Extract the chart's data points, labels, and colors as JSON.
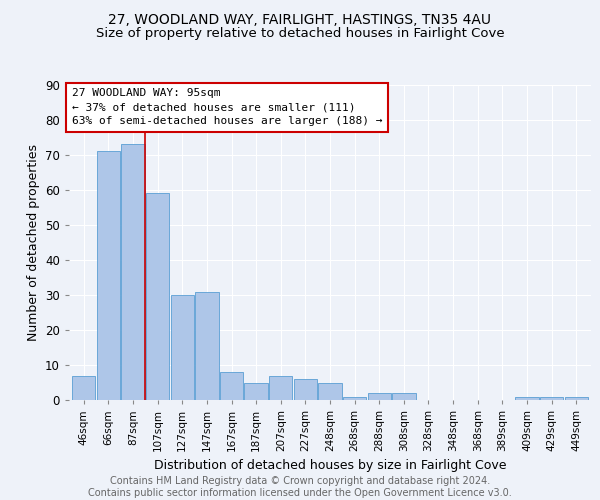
{
  "title_line1": "27, WOODLAND WAY, FAIRLIGHT, HASTINGS, TN35 4AU",
  "title_line2": "Size of property relative to detached houses in Fairlight Cove",
  "xlabel": "Distribution of detached houses by size in Fairlight Cove",
  "ylabel": "Number of detached properties",
  "footer_line1": "Contains HM Land Registry data © Crown copyright and database right 2024.",
  "footer_line2": "Contains public sector information licensed under the Open Government Licence v3.0.",
  "annotation_line1": "27 WOODLAND WAY: 95sqm",
  "annotation_line2": "← 37% of detached houses are smaller (111)",
  "annotation_line3": "63% of semi-detached houses are larger (188) →",
  "bar_labels": [
    "46sqm",
    "66sqm",
    "87sqm",
    "107sqm",
    "127sqm",
    "147sqm",
    "167sqm",
    "187sqm",
    "207sqm",
    "227sqm",
    "248sqm",
    "268sqm",
    "288sqm",
    "308sqm",
    "328sqm",
    "348sqm",
    "368sqm",
    "389sqm",
    "409sqm",
    "429sqm",
    "449sqm"
  ],
  "bar_values": [
    7,
    71,
    73,
    59,
    30,
    31,
    8,
    5,
    7,
    6,
    5,
    1,
    2,
    2,
    0,
    0,
    0,
    0,
    1,
    1,
    1
  ],
  "bar_color": "#aec6e8",
  "bar_edge_color": "#5a9fd4",
  "red_line_x": 2.5,
  "background_color": "#eef2f9",
  "ylim": [
    0,
    90
  ],
  "annotation_box_color": "#ffffff",
  "annotation_box_edge_color": "#cc0000",
  "grid_color": "#ffffff",
  "title_fontsize": 10,
  "subtitle_fontsize": 9.5,
  "axis_label_fontsize": 9,
  "tick_label_fontsize": 7.5,
  "annotation_fontsize": 8,
  "footer_fontsize": 7
}
